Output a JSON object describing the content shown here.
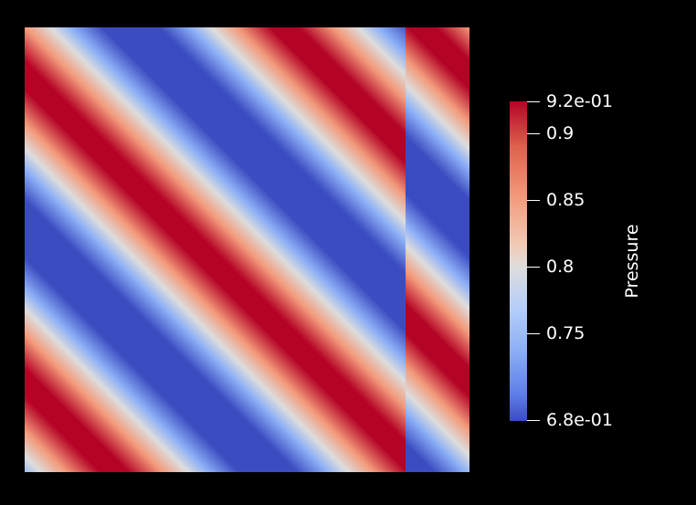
{
  "view": {
    "background": "#000000"
  },
  "field": {
    "variable": "Pressure",
    "colormap": [
      "#3b4cc0",
      "#8caff7",
      "#dddddd",
      "#f39a7b",
      "#b40426"
    ]
  },
  "colorbar": {
    "title": "Pressure",
    "ticks": [
      "9.2e-01",
      "0.9",
      "0.85",
      "0.8",
      "0.75",
      "6.8e-01"
    ]
  }
}
